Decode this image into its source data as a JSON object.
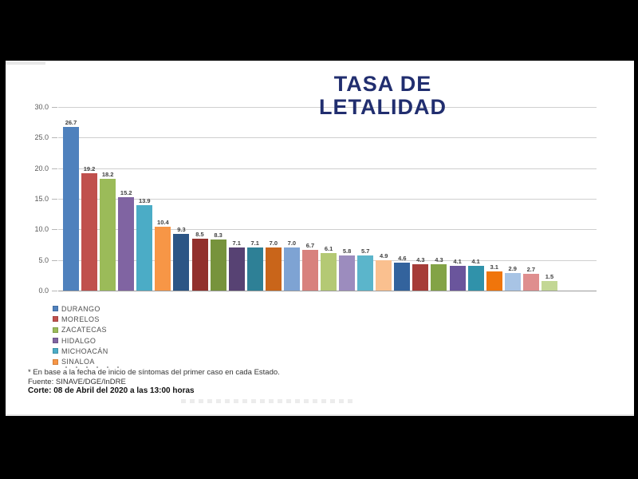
{
  "header": {
    "title_line1": "TASA DE",
    "title_line2": "LETALIDAD",
    "title_color": "#212e6f"
  },
  "chart_data": {
    "type": "bar",
    "title": "TASA DE LETALIDAD",
    "xlabel": "",
    "ylabel": "",
    "ylim": [
      0,
      30
    ],
    "grid": true,
    "legend_position": "bottom-left",
    "ytick_labels": [
      "30.0",
      "25.0",
      "20.0",
      "15.0",
      "10.0",
      "5.0",
      "0.0"
    ],
    "values": [
      26.7,
      19.2,
      18.2,
      15.2,
      13.9,
      10.4,
      9.3,
      8.5,
      8.3,
      7.1,
      7.1,
      7.0,
      7.0,
      6.7,
      6.1,
      5.8,
      5.7,
      4.9,
      4.6,
      4.3,
      4.3,
      4.1,
      4.1,
      3.1,
      2.9,
      2.7,
      1.5
    ],
    "bar_colors": [
      "#4F81BD",
      "#C0504D",
      "#9BBB59",
      "#8064A2",
      "#4BACC6",
      "#F79646",
      "#2C5585",
      "#92302D",
      "#77933C",
      "#574273",
      "#2E8096",
      "#C9651A",
      "#7EA3D3",
      "#D8817D",
      "#B4C974",
      "#9C8CBE",
      "#5BB5CB",
      "#FAC08F",
      "#33639D",
      "#A63C38",
      "#83A346",
      "#6A559C",
      "#3092AA",
      "#F0750B",
      "#A8C4E5",
      "#DF8E8E",
      "#C3D795"
    ],
    "series_named_in_legend": [
      "DURANGO",
      "MORELOS",
      "ZACATECAS",
      "HIDALGO",
      "MICHOACÁN",
      "SINALOA"
    ]
  },
  "legend": {
    "items": [
      {
        "label": "DURANGO",
        "color": "#4F81BD"
      },
      {
        "label": "MORELOS",
        "color": "#C0504D"
      },
      {
        "label": "ZACATECAS",
        "color": "#9BBB59"
      },
      {
        "label": "HIDALGO",
        "color": "#8064A2"
      },
      {
        "label": "MICHOACÁN",
        "color": "#4BACC6"
      },
      {
        "label": "SINALOA",
        "color": "#F79646"
      },
      {
        "label": "",
        "color": "#17375E",
        "truncated": true
      }
    ]
  },
  "footnotes": {
    "note": "* En base a la fecha de inicio de síntomas del primer caso en cada Estado.",
    "source": "Fuente: SINAVE/DGE/InDRE",
    "cutoff": "Corte: 08 de Abril del 2020 a las 13:00 horas"
  }
}
